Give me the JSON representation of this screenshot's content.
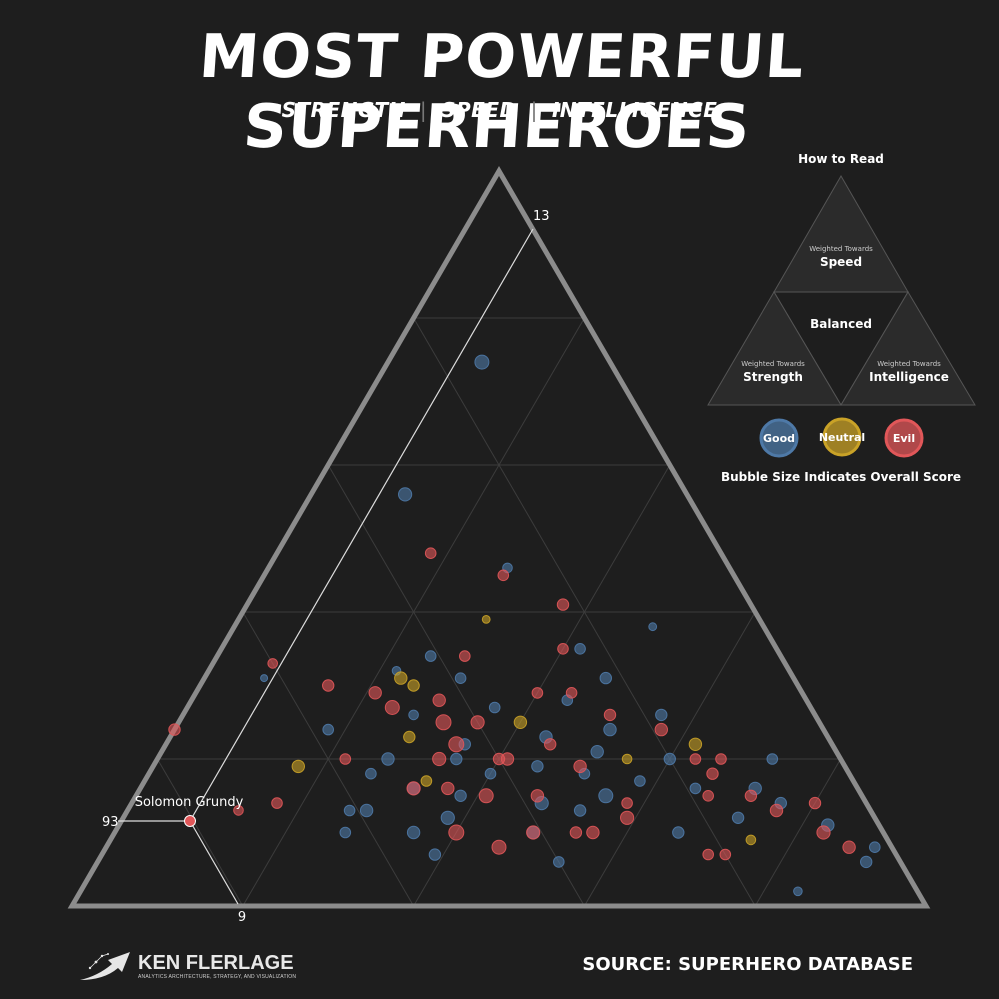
{
  "header": {
    "title": "MOST POWERFUL SUPERHEROES",
    "subtitle_parts": [
      "STRENGTH",
      "SPEED",
      "INTELLIGENCE"
    ],
    "subtitle_separator": "|"
  },
  "legend": {
    "heading": "How to Read",
    "regions": {
      "top": {
        "small": "Weighted Towards",
        "big": "Speed"
      },
      "center": {
        "big": "Balanced"
      },
      "left": {
        "small": "Weighted Towards",
        "big": "Strength"
      },
      "right": {
        "small": "Weighted Towards",
        "big": "Intelligence"
      }
    },
    "alignments": [
      {
        "label": "Good",
        "color": "#4e79a7"
      },
      {
        "label": "Neutral",
        "color": "#c9a227"
      },
      {
        "label": "Evil",
        "color": "#e15759"
      }
    ],
    "size_note": "Bubble Size Indicates Overall Score"
  },
  "footer": {
    "source": "SOURCE: SUPERHERO DATABASE",
    "brand_name": "KEN FLERLAGE",
    "brand_tagline": "ANALYTICS ARCHITECTURE, STRATEGY, AND VISUALIZATION"
  },
  "chart_data": {
    "type": "scatter",
    "coordinate_system": "ternary",
    "axes": [
      "Strength",
      "Speed",
      "Intelligence"
    ],
    "grid": true,
    "highlight": {
      "name": "Solomon Grundy",
      "alignment": "Evil",
      "strength_label": "93",
      "speed_label": "13",
      "intelligence_label": "9"
    },
    "series": [
      {
        "name": "Good",
        "color": "#4e79a7",
        "points": [
          [
            0.15,
            0.74,
            0.11,
            14
          ],
          [
            0.33,
            0.56,
            0.11,
            13
          ],
          [
            0.62,
            0.31,
            0.07,
            6
          ],
          [
            0.41,
            0.34,
            0.25,
            10
          ],
          [
            0.13,
            0.38,
            0.49,
            7
          ],
          [
            0.46,
            0.32,
            0.22,
            8
          ],
          [
            0.18,
            0.26,
            0.56,
            11
          ],
          [
            0.53,
            0.2,
            0.27,
            12
          ],
          [
            0.43,
            0.22,
            0.35,
            11
          ],
          [
            0.33,
            0.23,
            0.44,
            12
          ],
          [
            0.42,
            0.18,
            0.4,
            10
          ],
          [
            0.52,
            0.16,
            0.32,
            12
          ],
          [
            0.36,
            0.19,
            0.45,
            11
          ],
          [
            0.25,
            0.17,
            0.58,
            10
          ],
          [
            0.59,
            0.13,
            0.28,
            12
          ],
          [
            0.47,
            0.15,
            0.38,
            11
          ],
          [
            0.38,
            0.14,
            0.48,
            13
          ],
          [
            0.3,
            0.15,
            0.55,
            14
          ],
          [
            0.19,
            0.16,
            0.65,
            10
          ],
          [
            0.12,
            0.16,
            0.72,
            12
          ],
          [
            0.1,
            0.14,
            0.76,
            11
          ],
          [
            0.63,
            0.1,
            0.27,
            10
          ],
          [
            0.41,
            0.1,
            0.49,
            12
          ],
          [
            0.06,
            0.11,
            0.83,
            12
          ],
          [
            0.16,
            0.12,
            0.72,
            11
          ],
          [
            0.54,
            0.07,
            0.39,
            11
          ],
          [
            0.4,
            0.06,
            0.54,
            10
          ],
          [
            0.04,
            0.06,
            0.9,
            11
          ],
          [
            0.02,
            0.08,
            0.9,
            10
          ],
          [
            0.28,
            0.21,
            0.51,
            12
          ],
          [
            0.47,
            0.26,
            0.27,
            9
          ],
          [
            0.23,
            0.35,
            0.42,
            10
          ],
          [
            0.26,
            0.46,
            0.28,
            9
          ],
          [
            0.61,
            0.13,
            0.26,
            10
          ],
          [
            0.5,
            0.12,
            0.38,
            13
          ],
          [
            0.14,
            0.02,
            0.84,
            8
          ],
          [
            0.28,
            0.28,
            0.44,
            10
          ],
          [
            0.2,
            0.2,
            0.6,
            11
          ],
          [
            0.37,
            0.27,
            0.36,
            10
          ],
          [
            0.55,
            0.1,
            0.35,
            12
          ],
          [
            0.08,
            0.2,
            0.72,
            10
          ],
          [
            0.34,
            0.13,
            0.53,
            11
          ],
          [
            0.25,
            0.24,
            0.51,
            12
          ],
          [
            0.31,
            0.18,
            0.51,
            10
          ],
          [
            0.45,
            0.2,
            0.35,
            11
          ],
          [
            0.56,
            0.18,
            0.26,
            10
          ],
          [
            0.24,
            0.1,
            0.66,
            11
          ],
          [
            0.58,
            0.24,
            0.18,
            10
          ],
          [
            0.22,
            0.31,
            0.47,
            11
          ],
          [
            0.39,
            0.31,
            0.3,
            10
          ]
        ]
      },
      {
        "name": "Neutral",
        "color": "#c9a227",
        "points": [
          [
            0.46,
            0.31,
            0.23,
            12
          ],
          [
            0.45,
            0.3,
            0.25,
            11
          ],
          [
            0.35,
            0.25,
            0.4,
            12
          ],
          [
            0.49,
            0.23,
            0.28,
            11
          ],
          [
            0.64,
            0.19,
            0.17,
            12
          ],
          [
            0.32,
            0.39,
            0.29,
            7
          ],
          [
            0.16,
            0.22,
            0.62,
            12
          ],
          [
            0.25,
            0.2,
            0.55,
            9
          ],
          [
            0.16,
            0.09,
            0.75,
            9
          ],
          [
            0.5,
            0.17,
            0.33,
            10
          ]
        ]
      },
      {
        "name": "Evil",
        "color": "#e15759",
        "points": [
          [
            0.74,
            0.13,
            0.13,
            9
          ],
          [
            0.76,
            0.24,
            0.0,
            11
          ],
          [
            0.34,
            0.48,
            0.18,
            10
          ],
          [
            0.6,
            0.33,
            0.07,
            9
          ],
          [
            0.69,
            0.14,
            0.17,
            10
          ],
          [
            0.5,
            0.29,
            0.21,
            12
          ],
          [
            0.49,
            0.27,
            0.24,
            14
          ],
          [
            0.44,
            0.25,
            0.31,
            15
          ],
          [
            0.4,
            0.25,
            0.35,
            13
          ],
          [
            0.44,
            0.22,
            0.34,
            15
          ],
          [
            0.47,
            0.2,
            0.33,
            13
          ],
          [
            0.39,
            0.2,
            0.41,
            12
          ],
          [
            0.52,
            0.16,
            0.32,
            13
          ],
          [
            0.44,
            0.15,
            0.41,
            14
          ],
          [
            0.38,
            0.15,
            0.47,
            12
          ],
          [
            0.31,
            0.19,
            0.5,
            12
          ],
          [
            0.5,
            0.1,
            0.4,
            15
          ],
          [
            0.46,
            0.08,
            0.46,
            14
          ],
          [
            0.41,
            0.1,
            0.49,
            13
          ],
          [
            0.29,
            0.12,
            0.59,
            13
          ],
          [
            0.34,
            0.1,
            0.56,
            12
          ],
          [
            0.24,
            0.26,
            0.5,
            11
          ],
          [
            0.27,
            0.29,
            0.44,
            10
          ],
          [
            0.19,
            0.24,
            0.57,
            12
          ],
          [
            0.16,
            0.18,
            0.66,
            11
          ],
          [
            0.11,
            0.13,
            0.76,
            12
          ],
          [
            0.07,
            0.1,
            0.83,
            13
          ],
          [
            0.05,
            0.08,
            0.87,
            12
          ],
          [
            0.06,
            0.14,
            0.8,
            11
          ],
          [
            0.18,
            0.15,
            0.67,
            10
          ],
          [
            0.14,
            0.2,
            0.66,
            10
          ],
          [
            0.55,
            0.3,
            0.15,
            11
          ],
          [
            0.27,
            0.45,
            0.28,
            10
          ],
          [
            0.25,
            0.35,
            0.4,
            10
          ],
          [
            0.22,
            0.41,
            0.37,
            11
          ],
          [
            0.58,
            0.2,
            0.22,
            10
          ],
          [
            0.33,
            0.22,
            0.45,
            11
          ],
          [
            0.36,
            0.1,
            0.54,
            11
          ],
          [
            0.28,
            0.14,
            0.58,
            10
          ],
          [
            0.22,
            0.07,
            0.71,
            10
          ],
          [
            0.2,
            0.07,
            0.73,
            10
          ],
          [
            0.13,
            0.15,
            0.72,
            11
          ],
          [
            0.17,
            0.2,
            0.63,
            10
          ],
          [
            0.43,
            0.28,
            0.29,
            12
          ],
          [
            0.4,
            0.2,
            0.4,
            11
          ],
          [
            0.37,
            0.34,
            0.29,
            10
          ],
          [
            0.31,
            0.29,
            0.4,
            10
          ],
          [
            0.48,
            0.16,
            0.36,
            12
          ]
        ]
      }
    ]
  }
}
